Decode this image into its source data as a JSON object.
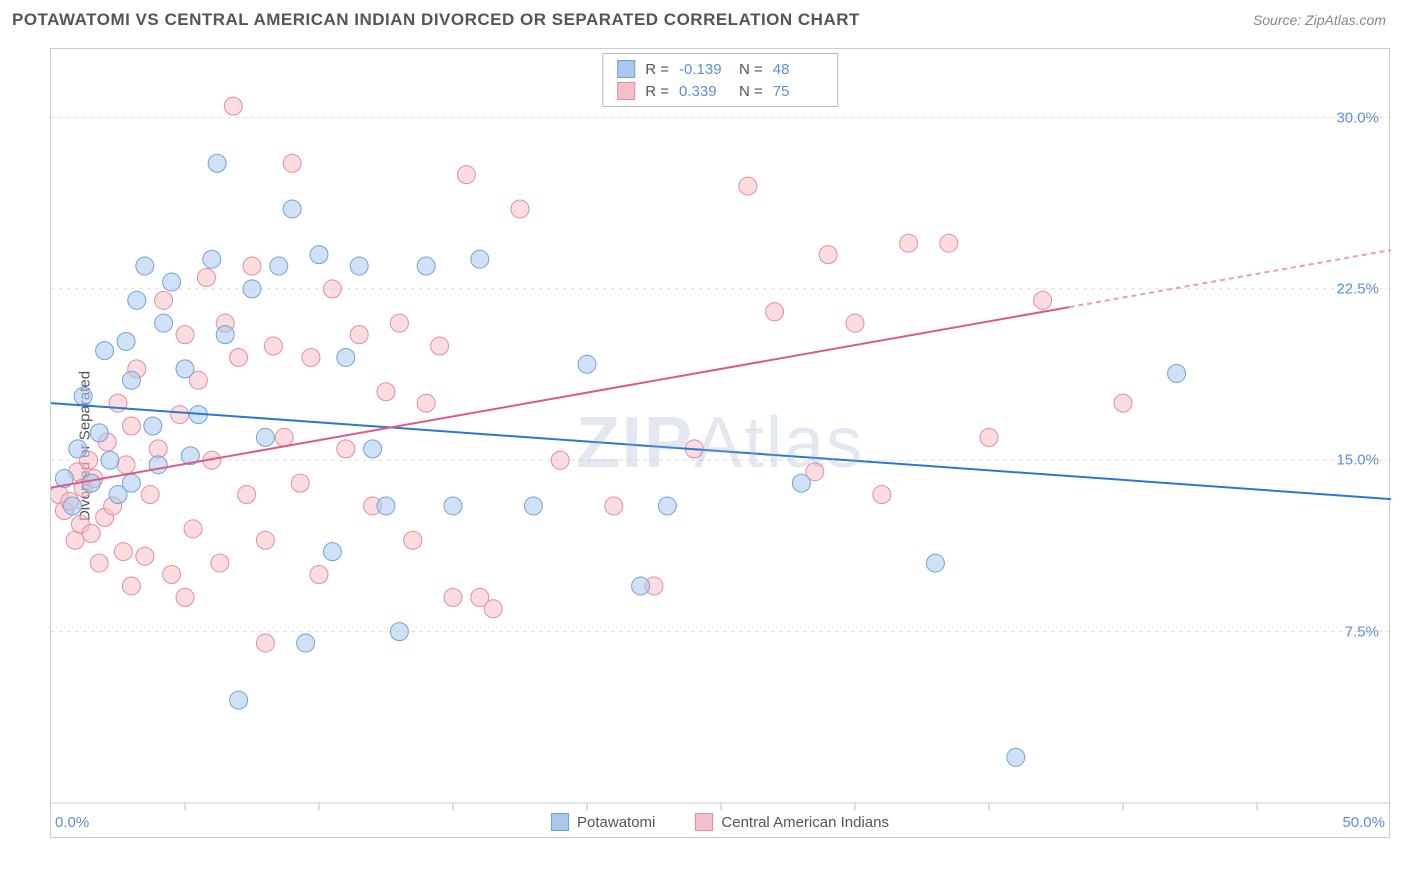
{
  "header": {
    "title": "POTAWATOMI VS CENTRAL AMERICAN INDIAN DIVORCED OR SEPARATED CORRELATION CHART",
    "source": "Source: ZipAtlas.com"
  },
  "chart": {
    "type": "scatter",
    "ylabel": "Divorced or Separated",
    "watermark_a": "ZIP",
    "watermark_b": "Atlas",
    "xlim": [
      0,
      50
    ],
    "ylim": [
      0,
      33
    ],
    "xtick_positions": [
      5,
      10,
      15,
      20,
      25,
      30,
      35,
      40,
      45
    ],
    "xtick_labels": {
      "left": "0.0%",
      "right": "50.0%"
    },
    "ygrid": [
      {
        "value": 7.5,
        "label": "7.5%"
      },
      {
        "value": 15.0,
        "label": "15.0%"
      },
      {
        "value": 22.5,
        "label": "22.5%"
      },
      {
        "value": 30.0,
        "label": "30.0%"
      }
    ],
    "background_color": "#ffffff",
    "grid_color": "#dddddd",
    "border_color": "#cccccc",
    "marker_radius": 9,
    "marker_opacity": 0.55,
    "series": [
      {
        "name": "Potawatomi",
        "color_fill": "#a9c8ec",
        "color_stroke": "#6fa3db",
        "R": "-0.139",
        "N": "48",
        "trend": {
          "y_at_x0": 17.5,
          "y_at_x50": 13.3,
          "color": "#2b78d4",
          "width": 2
        },
        "points": [
          [
            0.5,
            14.2
          ],
          [
            0.8,
            13.0
          ],
          [
            1.0,
            15.5
          ],
          [
            1.2,
            17.8
          ],
          [
            1.5,
            14.0
          ],
          [
            1.8,
            16.2
          ],
          [
            2.0,
            19.8
          ],
          [
            2.2,
            15.0
          ],
          [
            2.5,
            13.5
          ],
          [
            2.8,
            20.2
          ],
          [
            3.0,
            18.5
          ],
          [
            3.2,
            22.0
          ],
          [
            3.5,
            23.5
          ],
          [
            3.8,
            16.5
          ],
          [
            4.0,
            14.8
          ],
          [
            4.5,
            22.8
          ],
          [
            5.0,
            19.0
          ],
          [
            5.2,
            15.2
          ],
          [
            5.5,
            17.0
          ],
          [
            6.0,
            23.8
          ],
          [
            6.2,
            28.0
          ],
          [
            6.5,
            20.5
          ],
          [
            7.0,
            4.5
          ],
          [
            7.5,
            22.5
          ],
          [
            8.0,
            16.0
          ],
          [
            8.5,
            23.5
          ],
          [
            9.0,
            26.0
          ],
          [
            9.5,
            7.0
          ],
          [
            10.0,
            24.0
          ],
          [
            10.5,
            11.0
          ],
          [
            11.0,
            19.5
          ],
          [
            11.5,
            23.5
          ],
          [
            12.0,
            15.5
          ],
          [
            12.5,
            13.0
          ],
          [
            13.0,
            7.5
          ],
          [
            14.0,
            23.5
          ],
          [
            15.0,
            13.0
          ],
          [
            16.0,
            23.8
          ],
          [
            18.0,
            13.0
          ],
          [
            20.0,
            19.2
          ],
          [
            22.0,
            9.5
          ],
          [
            23.0,
            13.0
          ],
          [
            28.0,
            14.0
          ],
          [
            33.0,
            10.5
          ],
          [
            36.0,
            2.0
          ],
          [
            42.0,
            18.8
          ],
          [
            4.2,
            21.0
          ],
          [
            3.0,
            14.0
          ]
        ]
      },
      {
        "name": "Central American Indians",
        "color_fill": "#f5bfc9",
        "color_stroke": "#e88ba0",
        "R": "0.339",
        "N": "75",
        "trend": {
          "y_at_x0": 13.8,
          "y_at_x50": 24.2,
          "color": "#db5b86",
          "width": 2,
          "dashed_from_x": 38
        },
        "points": [
          [
            0.3,
            13.5
          ],
          [
            0.5,
            12.8
          ],
          [
            0.7,
            13.2
          ],
          [
            0.9,
            11.5
          ],
          [
            1.0,
            14.5
          ],
          [
            1.1,
            12.2
          ],
          [
            1.2,
            13.8
          ],
          [
            1.4,
            15.0
          ],
          [
            1.5,
            11.8
          ],
          [
            1.6,
            14.2
          ],
          [
            1.8,
            10.5
          ],
          [
            2.0,
            12.5
          ],
          [
            2.1,
            15.8
          ],
          [
            2.3,
            13.0
          ],
          [
            2.5,
            17.5
          ],
          [
            2.7,
            11.0
          ],
          [
            2.8,
            14.8
          ],
          [
            3.0,
            16.5
          ],
          [
            3.2,
            19.0
          ],
          [
            3.5,
            10.8
          ],
          [
            3.7,
            13.5
          ],
          [
            4.0,
            15.5
          ],
          [
            4.2,
            22.0
          ],
          [
            4.5,
            10.0
          ],
          [
            4.8,
            17.0
          ],
          [
            5.0,
            20.5
          ],
          [
            5.3,
            12.0
          ],
          [
            5.5,
            18.5
          ],
          [
            5.8,
            23.0
          ],
          [
            6.0,
            15.0
          ],
          [
            6.3,
            10.5
          ],
          [
            6.5,
            21.0
          ],
          [
            6.8,
            30.5
          ],
          [
            7.0,
            19.5
          ],
          [
            7.3,
            13.5
          ],
          [
            7.5,
            23.5
          ],
          [
            8.0,
            11.5
          ],
          [
            8.3,
            20.0
          ],
          [
            8.7,
            16.0
          ],
          [
            9.0,
            28.0
          ],
          [
            9.3,
            14.0
          ],
          [
            9.7,
            19.5
          ],
          [
            10.0,
            10.0
          ],
          [
            10.5,
            22.5
          ],
          [
            11.0,
            15.5
          ],
          [
            11.5,
            20.5
          ],
          [
            12.0,
            13.0
          ],
          [
            12.5,
            18.0
          ],
          [
            13.0,
            21.0
          ],
          [
            13.5,
            11.5
          ],
          [
            14.0,
            17.5
          ],
          [
            14.5,
            20.0
          ],
          [
            15.0,
            9.0
          ],
          [
            15.5,
            27.5
          ],
          [
            16.0,
            9.0
          ],
          [
            16.5,
            8.5
          ],
          [
            17.5,
            26.0
          ],
          [
            19.0,
            15.0
          ],
          [
            21.0,
            13.0
          ],
          [
            22.5,
            9.5
          ],
          [
            24.0,
            15.5
          ],
          [
            26.0,
            27.0
          ],
          [
            27.0,
            21.5
          ],
          [
            28.5,
            14.5
          ],
          [
            29.0,
            24.0
          ],
          [
            30.0,
            21.0
          ],
          [
            31.0,
            13.5
          ],
          [
            32.0,
            24.5
          ],
          [
            33.5,
            24.5
          ],
          [
            35.0,
            16.0
          ],
          [
            37.0,
            22.0
          ],
          [
            40.0,
            17.5
          ],
          [
            3.0,
            9.5
          ],
          [
            5.0,
            9.0
          ],
          [
            8.0,
            7.0
          ]
        ]
      }
    ],
    "stats_labels": {
      "R": "R =",
      "N": "N ="
    },
    "bottom_legend_labels": [
      "Potawatomi",
      "Central American Indians"
    ]
  }
}
